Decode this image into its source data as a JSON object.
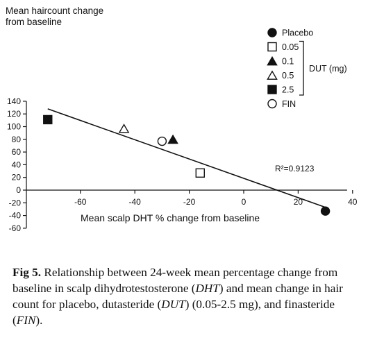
{
  "chart_data": {
    "type": "scatter",
    "title": "",
    "ylabel_line1": "Mean haircount change",
    "ylabel_line2": "from baseline",
    "xlabel": "Mean scalp DHT % change from baseline",
    "xlim": [
      -75,
      38
    ],
    "ylim": [
      -60,
      140
    ],
    "x_ticks": [
      -60,
      -40,
      -20,
      0,
      20,
      40
    ],
    "y_ticks": [
      -60,
      -40,
      -20,
      0,
      20,
      40,
      60,
      80,
      100,
      120,
      140
    ],
    "series": [
      {
        "name": "Placebo",
        "marker": "filled-circle",
        "x": 30,
        "y": -33
      },
      {
        "name": "0.05",
        "marker": "open-square",
        "x": -16,
        "y": 27
      },
      {
        "name": "0.1",
        "marker": "filled-triangle",
        "x": -26,
        "y": 80
      },
      {
        "name": "0.5",
        "marker": "open-triangle",
        "x": -44,
        "y": 97
      },
      {
        "name": "2.5",
        "marker": "filled-square",
        "x": -72,
        "y": 111
      },
      {
        "name": "FIN",
        "marker": "open-circle",
        "x": -30,
        "y": 77
      }
    ],
    "trendline": {
      "x1": -72,
      "y1": 128,
      "x2": 30,
      "y2": -27
    },
    "r2_label": "R²=0.9123",
    "dut_bracket_label": "DUT (mg)",
    "grid": false,
    "legend_position": "top-right"
  },
  "caption": {
    "label": "Fig 5.",
    "text_1": " Relationship between 24-week mean percentage change from baseline in scalp dihydrotestosterone (",
    "abbr_dht": "DHT",
    "text_2": ") and mean change in hair count for placebo, dutasteride (",
    "abbr_dut": "DUT",
    "text_3": ") (0.05-2.5 mg), and finasteride (",
    "abbr_fin": "FIN",
    "text_4": ")."
  }
}
